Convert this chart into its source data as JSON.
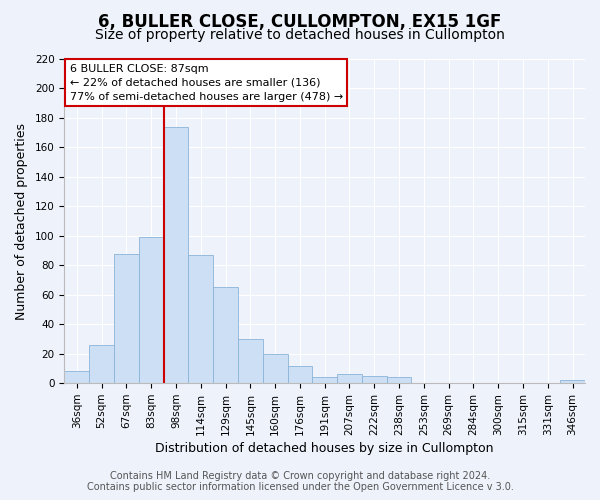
{
  "title": "6, BULLER CLOSE, CULLOMPTON, EX15 1GF",
  "subtitle": "Size of property relative to detached houses in Cullompton",
  "xlabel": "Distribution of detached houses by size in Cullompton",
  "ylabel": "Number of detached properties",
  "bar_labels": [
    "36sqm",
    "52sqm",
    "67sqm",
    "83sqm",
    "98sqm",
    "114sqm",
    "129sqm",
    "145sqm",
    "160sqm",
    "176sqm",
    "191sqm",
    "207sqm",
    "222sqm",
    "238sqm",
    "253sqm",
    "269sqm",
    "284sqm",
    "300sqm",
    "315sqm",
    "331sqm",
    "346sqm"
  ],
  "bar_values": [
    8,
    26,
    88,
    99,
    174,
    87,
    65,
    30,
    20,
    12,
    4,
    6,
    5,
    4,
    0,
    0,
    0,
    0,
    0,
    0,
    2
  ],
  "bar_color": "#ccdff5",
  "bar_edge_color": "#8ab4d8",
  "ylim": [
    0,
    220
  ],
  "yticks": [
    0,
    20,
    40,
    60,
    80,
    100,
    120,
    140,
    160,
    180,
    200,
    220
  ],
  "vline_color": "#cc0000",
  "annotation_title": "6 BULLER CLOSE: 87sqm",
  "annotation_line1": "← 22% of detached houses are smaller (136)",
  "annotation_line2": "77% of semi-detached houses are larger (478) →",
  "annotation_box_color": "#ffffff",
  "annotation_box_edge": "#cc0000",
  "footer1": "Contains HM Land Registry data © Crown copyright and database right 2024.",
  "footer2": "Contains public sector information licensed under the Open Government Licence v 3.0.",
  "background_color": "#eef2fa",
  "plot_background": "#eef2fa",
  "grid_color": "#ffffff",
  "title_fontsize": 12,
  "subtitle_fontsize": 10,
  "axis_label_fontsize": 9,
  "tick_fontsize": 7.5,
  "footer_fontsize": 7
}
